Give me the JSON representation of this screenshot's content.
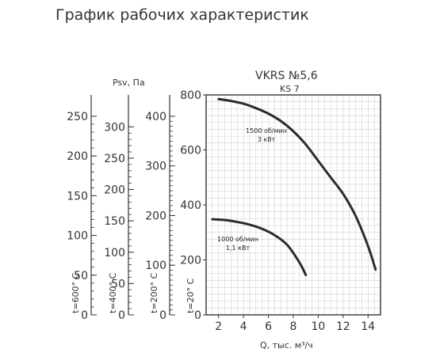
{
  "header": {
    "title": "График рабочих характеристик"
  },
  "chart_data": {
    "type": "line",
    "title": "VKRS №5,6",
    "subtitle": "KS 7",
    "xlabel": "Q, тыс. м³/ч",
    "ylabel": "Psv, Па",
    "xlim": [
      1,
      15
    ],
    "ylim": [
      0,
      800
    ],
    "x_ticks": [
      2,
      4,
      6,
      8,
      10,
      12,
      14
    ],
    "y_ticks": [
      0,
      200,
      400,
      600,
      800
    ],
    "grid": true,
    "series": [
      {
        "name": "1500 об/мин\n3 кВт",
        "label_line1": "1500 об/мин",
        "label_line2": "3 кВт",
        "x": [
          2,
          3,
          4,
          5,
          6,
          7,
          8,
          9,
          10,
          11,
          12,
          13,
          14,
          14.6
        ],
        "y": [
          785,
          778,
          768,
          752,
          732,
          705,
          668,
          620,
          560,
          500,
          440,
          360,
          250,
          165
        ]
      },
      {
        "name": "1000 об/мин\n1,1 кВт",
        "label_line1": "1000 об/мин",
        "label_line2": "1,1 кВт",
        "x": [
          1.5,
          2.5,
          3.5,
          4.5,
          5.5,
          6.5,
          7.5,
          8.5,
          9
        ],
        "y": [
          348,
          345,
          338,
          328,
          313,
          290,
          255,
          190,
          145
        ]
      }
    ],
    "temperature_scales": [
      {
        "label": "t=600° C",
        "max": 250,
        "ticks": [
          0,
          50,
          100,
          150,
          200,
          250
        ]
      },
      {
        "label": "t=400° C",
        "max": 300,
        "ticks": [
          0,
          50,
          100,
          150,
          200,
          250,
          300
        ]
      },
      {
        "label": "t=200° C",
        "max": 400,
        "ticks": [
          0,
          100,
          200,
          300,
          400
        ]
      },
      {
        "label": "t=20° C",
        "max": 800,
        "ticks": []
      }
    ]
  }
}
